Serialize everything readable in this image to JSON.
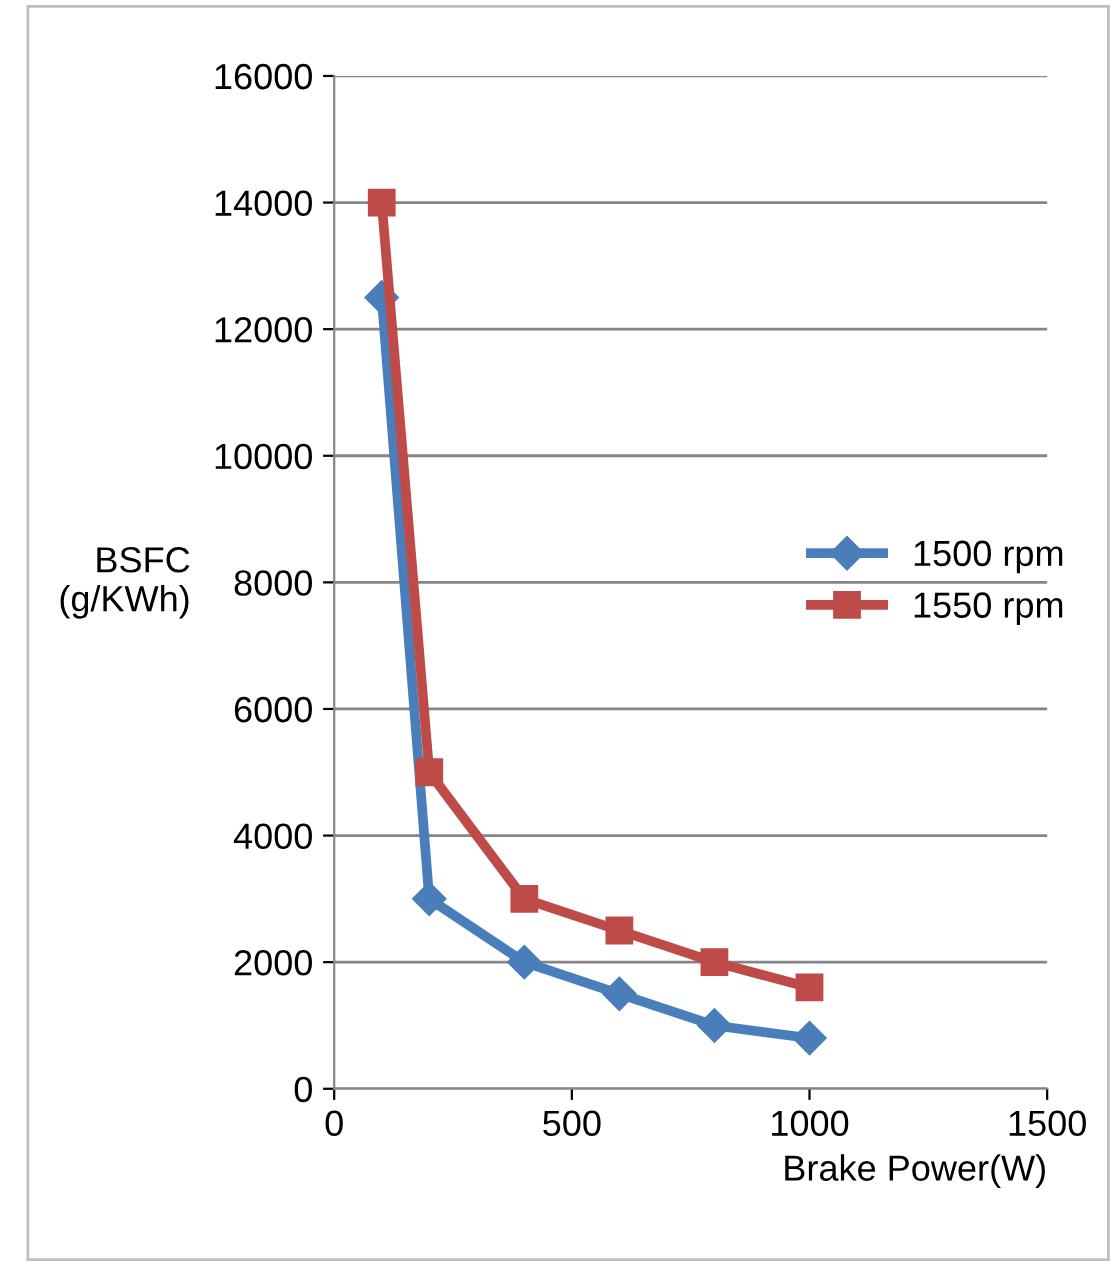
{
  "chart_data": {
    "type": "line",
    "xlabel": "Brake Power(W)",
    "ylabel": "BSFC\n(g/KWh)",
    "xlim": [
      0,
      1500
    ],
    "xticks": [
      0,
      500,
      1000,
      1500
    ],
    "ylim": [
      0,
      16000
    ],
    "yticks": [
      0,
      2000,
      4000,
      6000,
      8000,
      10000,
      12000,
      14000,
      16000
    ],
    "grid": "y",
    "legend": "right",
    "line_style": "solid",
    "series": [
      {
        "name": "1500 rpm",
        "color": "#4a7ebb",
        "marker": "diamond",
        "x": [
          100,
          200,
          400,
          600,
          800,
          1000
        ],
        "values": [
          12500,
          3000,
          2000,
          1500,
          1000,
          800
        ]
      },
      {
        "name": "1550 rpm",
        "color": "#be4b48",
        "marker": "square",
        "x": [
          100,
          200,
          400,
          600,
          800,
          1000
        ],
        "values": [
          14000,
          5000,
          3000,
          2500,
          2000,
          1600
        ]
      }
    ]
  }
}
